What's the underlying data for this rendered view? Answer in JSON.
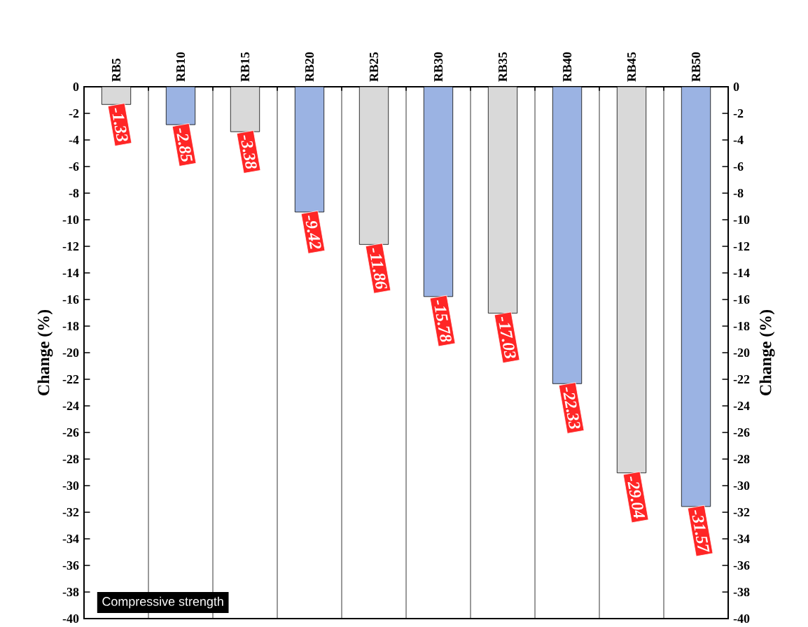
{
  "chart_data": {
    "type": "bar",
    "categories": [
      "RB5",
      "RB10",
      "RB15",
      "RB20",
      "RB25",
      "RB30",
      "RB35",
      "RB40",
      "RB45",
      "RB50"
    ],
    "values": [
      -1.33,
      -2.85,
      -3.38,
      -9.42,
      -11.86,
      -15.78,
      -17.03,
      -22.33,
      -29.04,
      -31.57
    ],
    "colors": [
      "#d9d9d9",
      "#9bb3e3",
      "#d9d9d9",
      "#9bb3e3",
      "#d9d9d9",
      "#9bb3e3",
      "#d9d9d9",
      "#9bb3e3",
      "#d9d9d9",
      "#9bb3e3"
    ],
    "data_labels": true,
    "ylabel": "Change (%)",
    "y2label": "Change (%)",
    "ylim": [
      -40,
      0
    ],
    "yticks": [
      -40,
      -38,
      -36,
      -34,
      -32,
      -30,
      -28,
      -26,
      -24,
      -22,
      -20,
      -18,
      -16,
      -14,
      -12,
      -10,
      -8,
      -6,
      -4,
      -2,
      0
    ],
    "y2lim": [
      -40,
      0
    ],
    "y2ticks": [
      -40,
      -38,
      -36,
      -34,
      -32,
      -30,
      -28,
      -26,
      -24,
      -22,
      -20,
      -18,
      -16,
      -14,
      -12,
      -10,
      -8,
      -6,
      -4,
      -2,
      0
    ],
    "grid": "x",
    "annotations": [
      "Compressive strength"
    ]
  }
}
